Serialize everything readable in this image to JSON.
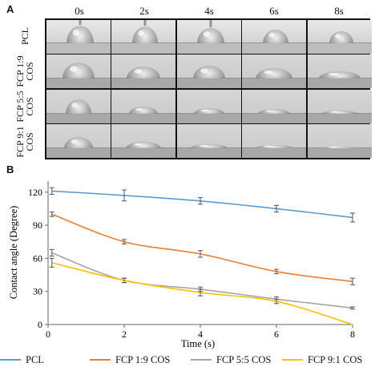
{
  "panel_a": {
    "letter": "A",
    "time_labels": [
      "0s",
      "2s",
      "4s",
      "6s",
      "8s"
    ],
    "row_labels": [
      "PCL",
      "FCP 1:9 COS",
      "FCP 5:5 COS",
      "FCP 9:1 COS"
    ]
  },
  "panel_b": {
    "letter": "B"
  },
  "chart_data": {
    "type": "line",
    "title": "",
    "xlabel": "Time (s)",
    "ylabel": "Contact angle (Degree)",
    "xlim": [
      0,
      8
    ],
    "ylim": [
      0,
      130
    ],
    "x_ticks": [
      0,
      2,
      4,
      6,
      8
    ],
    "y_ticks": [
      0,
      30,
      60,
      90,
      120
    ],
    "x_tick_labels": [
      "0",
      "2",
      "4",
      "6",
      "8"
    ],
    "y_tick_labels": [
      "0",
      "30",
      "60",
      "90",
      "120"
    ],
    "grid": false,
    "legend_position": "bottom",
    "x": [
      0.1,
      2,
      4,
      6,
      8
    ],
    "series": [
      {
        "name": "PCL",
        "color": "#5b9bd5",
        "values": [
          121,
          117,
          112,
          105,
          97
        ],
        "errors": [
          3,
          5,
          3,
          3,
          4
        ]
      },
      {
        "name": "FCP 1:9 COS",
        "color": "#ed7d31",
        "values": [
          100,
          75,
          64,
          48,
          39
        ],
        "errors": [
          2,
          2,
          3,
          2,
          3
        ]
      },
      {
        "name": "FCP 5:5 COS",
        "color": "#a5a5a5",
        "values": [
          65,
          40,
          32,
          23,
          15
        ],
        "errors": [
          3,
          2,
          2,
          2,
          1
        ]
      },
      {
        "name": "FCP 9:1 COS",
        "color": "#ffc000",
        "values": [
          56,
          40,
          29,
          21,
          0
        ],
        "errors": [
          4,
          2,
          3,
          2,
          0
        ]
      }
    ]
  }
}
